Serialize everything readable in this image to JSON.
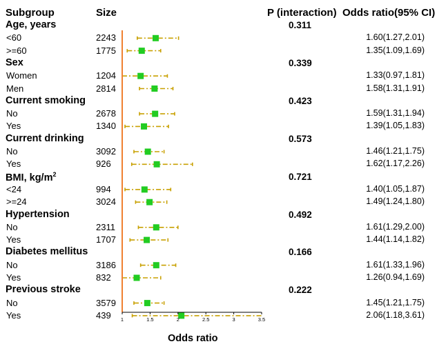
{
  "headers": {
    "subgroup": "Subgroup",
    "size": "Size",
    "p_interaction": "P (interaction)",
    "odds_ratio": "Odds ratio(95% CI)"
  },
  "chart_data": {
    "type": "forest",
    "xlabel": "Odds ratio",
    "xlim": [
      1,
      3.5
    ],
    "xticks": [
      "1",
      "1.5",
      "2",
      "2.5",
      "3",
      "3.5"
    ],
    "reference_line": 1,
    "marker_color": "#22cc22",
    "ci_color": "#c8a000",
    "ref_color": "#f08030",
    "groups": [
      {
        "name": "Age, years",
        "p": "0.311",
        "rows": [
          {
            "label": "<60",
            "size": "2243",
            "or": 1.6,
            "lo": 1.27,
            "hi": 2.01,
            "text": "1.60(1.27,2.01)"
          },
          {
            "label": ">=60",
            "size": "1775",
            "or": 1.35,
            "lo": 1.09,
            "hi": 1.69,
            "text": "1.35(1.09,1.69)"
          }
        ]
      },
      {
        "name": "Sex",
        "p": "0.339",
        "rows": [
          {
            "label": "Women",
            "size": "1204",
            "or": 1.33,
            "lo": 0.97,
            "hi": 1.81,
            "text": "1.33(0.97,1.81)"
          },
          {
            "label": "Men",
            "size": "2814",
            "or": 1.58,
            "lo": 1.31,
            "hi": 1.91,
            "text": "1.58(1.31,1.91)"
          }
        ]
      },
      {
        "name": "Current smoking",
        "p": "0.423",
        "rows": [
          {
            "label": "No",
            "size": "2678",
            "or": 1.59,
            "lo": 1.31,
            "hi": 1.94,
            "text": "1.59(1.31,1.94)"
          },
          {
            "label": "Yes",
            "size": "1340",
            "or": 1.39,
            "lo": 1.05,
            "hi": 1.83,
            "text": "1.39(1.05,1.83)"
          }
        ]
      },
      {
        "name": "Current drinking",
        "p": "0.573",
        "rows": [
          {
            "label": "No",
            "size": "3092",
            "or": 1.46,
            "lo": 1.21,
            "hi": 1.75,
            "text": "1.46(1.21,1.75)"
          },
          {
            "label": "Yes",
            "size": "926",
            "or": 1.62,
            "lo": 1.17,
            "hi": 2.26,
            "text": "1.62(1.17,2.26)"
          }
        ]
      },
      {
        "name": "BMI, kg/m",
        "name_sup": "2",
        "p": "0.721",
        "rows": [
          {
            "label": "<24",
            "size": "994",
            "or": 1.4,
            "lo": 1.05,
            "hi": 1.87,
            "text": "1.40(1.05,1.87)"
          },
          {
            "label": ">=24",
            "size": "3024",
            "or": 1.49,
            "lo": 1.24,
            "hi": 1.8,
            "text": "1.49(1.24,1.80)"
          }
        ]
      },
      {
        "name": "Hypertension",
        "p": "0.492",
        "rows": [
          {
            "label": "No",
            "size": "2311",
            "or": 1.61,
            "lo": 1.29,
            "hi": 2.0,
            "text": "1.61(1.29,2.00)"
          },
          {
            "label": "Yes",
            "size": "1707",
            "or": 1.44,
            "lo": 1.14,
            "hi": 1.82,
            "text": "1.44(1.14,1.82)"
          }
        ]
      },
      {
        "name": "Diabetes mellitus",
        "p": "0.166",
        "rows": [
          {
            "label": "No",
            "size": "3186",
            "or": 1.61,
            "lo": 1.33,
            "hi": 1.96,
            "text": "1.61(1.33,1.96)"
          },
          {
            "label": "Yes",
            "size": "832",
            "or": 1.26,
            "lo": 0.94,
            "hi": 1.69,
            "text": "1.26(0.94,1.69)"
          }
        ]
      },
      {
        "name": "Previous stroke",
        "p": "0.222",
        "rows": [
          {
            "label": "No",
            "size": "3579",
            "or": 1.45,
            "lo": 1.21,
            "hi": 1.75,
            "text": "1.45(1.21,1.75)"
          },
          {
            "label": "Yes",
            "size": "439",
            "or": 2.06,
            "lo": 1.18,
            "hi": 3.61,
            "text": "2.06(1.18,3.61)"
          }
        ]
      }
    ]
  }
}
